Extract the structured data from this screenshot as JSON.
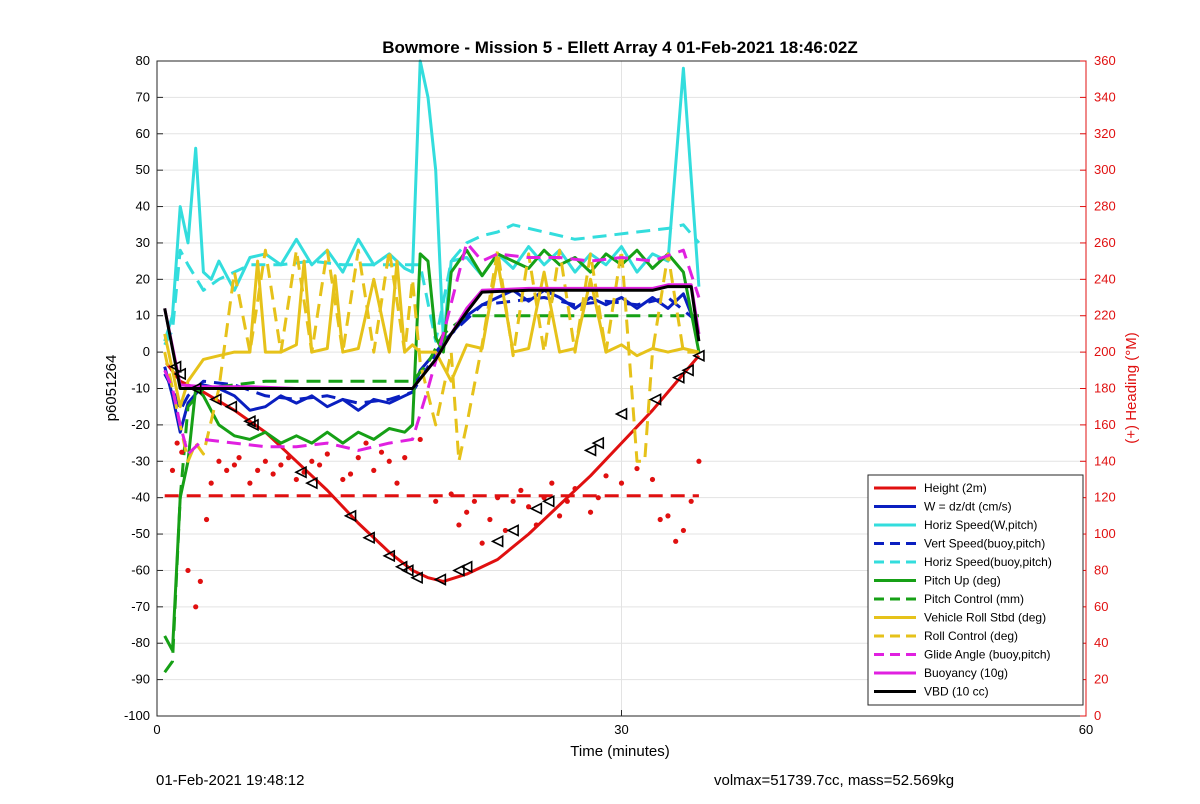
{
  "chart_data": {
    "type": "line",
    "title": "Bowmore - Mission 5 - Ellett Array 4 01-Feb-2021 18:46:02Z",
    "xlabel": "Time (minutes)",
    "ylabel": "p6051264",
    "y2label": "(+) Heading (°M)",
    "xlim": [
      0,
      60
    ],
    "ylim": [
      -100,
      80
    ],
    "y2lim": [
      0,
      360
    ],
    "xticks": [
      0,
      30,
      60
    ],
    "yticks": [
      -100,
      -90,
      -80,
      -70,
      -60,
      -50,
      -40,
      -30,
      -20,
      -10,
      0,
      10,
      20,
      30,
      40,
      50,
      60,
      70,
      80
    ],
    "y2ticks": [
      0,
      20,
      40,
      60,
      80,
      100,
      120,
      140,
      160,
      180,
      200,
      220,
      240,
      260,
      280,
      300,
      320,
      340,
      360
    ],
    "grid": true,
    "legend_position": "bottom-right",
    "colors": {
      "height": "#e01010",
      "w": "#0a1fc0",
      "horiz_speed": "#33dddd",
      "pitch": "#16a016",
      "roll": "#e6c21a",
      "glide": "#e020e0",
      "vbd": "#000000",
      "right_axis": "#e01010"
    },
    "series": [
      {
        "name": "Height (2m)",
        "style": "solid",
        "color": "#e01010",
        "axis": "left",
        "x": [
          0.6,
          1.5,
          3,
          5,
          7,
          9,
          11,
          13,
          15,
          16.5,
          17.5,
          18.5,
          20,
          22,
          24,
          26,
          28,
          30,
          32,
          34,
          35
        ],
        "y": [
          -3,
          -8,
          -11,
          -16,
          -22,
          -30,
          -38,
          -47,
          -55,
          -60,
          -62,
          -63,
          -61,
          -57,
          -50,
          -42,
          -34,
          -25,
          -16,
          -6,
          -1
        ]
      },
      {
        "name": "W = dz/dt (cm/s)",
        "style": "solid",
        "color": "#0a1fc0",
        "axis": "left",
        "x": [
          0.5,
          1,
          1.5,
          2,
          3,
          4,
          5,
          6,
          7,
          8,
          9,
          10,
          11,
          12,
          13,
          14,
          15,
          16,
          16.5,
          17,
          18,
          19,
          20,
          21,
          22,
          23,
          24,
          25,
          26,
          27,
          28,
          29,
          30,
          31,
          32,
          33,
          34,
          35
        ],
        "y": [
          -4,
          -12,
          -22,
          -14,
          -9,
          -10,
          -12,
          -16,
          -15,
          -12,
          -14,
          -12,
          -15,
          -13,
          -16,
          -13,
          -14,
          -12,
          -11,
          -5,
          0,
          5,
          10,
          13,
          15,
          17,
          14,
          17,
          15,
          12,
          15,
          13,
          15,
          12,
          15,
          12,
          16,
          5
        ]
      },
      {
        "name": "Horiz Speed(W,pitch)",
        "style": "solid",
        "color": "#33dddd",
        "axis": "left",
        "x": [
          0.5,
          1,
          1.5,
          2,
          2.5,
          3,
          3.5,
          4,
          5,
          6,
          7,
          8,
          9,
          10,
          11,
          12,
          13,
          14,
          15,
          16,
          16.5,
          17,
          17.5,
          18,
          18.5,
          19,
          20,
          21,
          22,
          23,
          24,
          25,
          26,
          27,
          28,
          29,
          30,
          31,
          32,
          33,
          34,
          35
        ],
        "y": [
          3,
          10,
          40,
          30,
          56,
          22,
          20,
          25,
          17,
          26,
          27,
          24,
          31,
          24,
          28,
          22,
          31,
          24,
          27,
          23,
          22,
          80,
          70,
          50,
          3,
          25,
          26,
          21,
          27,
          23,
          29,
          24,
          28,
          22,
          27,
          24,
          29,
          22,
          27,
          25,
          78,
          18
        ]
      },
      {
        "name": "Vert Speed(buoy,pitch)",
        "style": "dashed",
        "color": "#0a1fc0",
        "axis": "left",
        "x": [
          0.5,
          1,
          1.5,
          2,
          3,
          5,
          7,
          9,
          11,
          13,
          15,
          16.5,
          17.5,
          18.5,
          20,
          21,
          23,
          25,
          27,
          29,
          31,
          33,
          35
        ],
        "y": [
          -6,
          -10,
          -16,
          -12,
          -8,
          -9,
          -12,
          -13,
          -12,
          -14,
          -13,
          -11,
          -4,
          3,
          9,
          13,
          14,
          15,
          13,
          14,
          13,
          15,
          8
        ]
      },
      {
        "name": "Horiz Speed(buoy,pitch)",
        "style": "dashed",
        "color": "#33dddd",
        "axis": "left",
        "x": [
          0.5,
          1,
          1.5,
          2,
          3,
          4,
          6,
          8,
          10,
          12,
          14,
          16,
          17,
          18,
          19,
          20,
          21,
          22,
          23,
          25,
          27,
          29,
          31,
          33,
          34,
          35
        ],
        "y": [
          2,
          6,
          28,
          24,
          17,
          20,
          24,
          24,
          25,
          24,
          24,
          24,
          24,
          3,
          25,
          30,
          32,
          33,
          35,
          33,
          31,
          32,
          33,
          34,
          35,
          30
        ]
      },
      {
        "name": "Pitch Up (deg)",
        "style": "solid",
        "color": "#16a016",
        "axis": "left",
        "x": [
          0.5,
          1,
          1.5,
          2,
          2.5,
          3,
          4,
          5,
          6,
          7,
          8,
          9,
          10,
          11,
          12,
          13,
          14,
          15,
          16,
          16.5,
          17,
          17.5,
          18,
          18.5,
          19,
          20,
          21,
          22,
          23,
          24,
          25,
          26,
          27,
          28,
          29,
          30,
          31,
          32,
          33,
          34,
          35
        ],
        "y": [
          -78,
          -82,
          -40,
          -30,
          -10,
          -12,
          -20,
          -23,
          -24,
          -22,
          -25,
          -23,
          -25,
          -22,
          -25,
          -22,
          -24,
          -21,
          -22,
          -20,
          27,
          25,
          4,
          0,
          22,
          28,
          21,
          27,
          25,
          23,
          28,
          24,
          26,
          22,
          27,
          24,
          28,
          23,
          27,
          22,
          0
        ]
      },
      {
        "name": "Pitch Control (mm)",
        "style": "dashed",
        "color": "#16a016",
        "axis": "left",
        "x": [
          0.5,
          1,
          1.5,
          2,
          3,
          5,
          7,
          9,
          11,
          13,
          15,
          16.5,
          17.5,
          18.5,
          20,
          22,
          24,
          26,
          28,
          30,
          32,
          34,
          35
        ],
        "y": [
          -88,
          -85,
          -40,
          -15,
          -10,
          -9,
          -8,
          -8,
          -8,
          -8,
          -8,
          -8,
          -3,
          5,
          10,
          10,
          10,
          10,
          10,
          10,
          10,
          10,
          10
        ]
      },
      {
        "name": "Vehicle Roll Stbd (deg)",
        "style": "solid",
        "color": "#e6c21a",
        "axis": "left",
        "x": [
          0.5,
          1,
          1.5,
          2,
          3,
          4,
          5,
          6,
          6.5,
          7,
          8,
          9,
          9.5,
          10,
          11,
          11.5,
          12,
          13,
          14,
          15,
          15.5,
          16,
          16.5,
          17,
          18,
          19,
          20,
          21,
          22,
          23,
          24,
          25,
          26,
          27,
          28,
          29,
          30,
          31,
          32,
          33,
          34,
          35
        ],
        "y": [
          5,
          -5,
          -15,
          -8,
          -2,
          -1,
          0,
          0,
          25,
          0,
          0,
          2,
          25,
          0,
          1,
          21,
          0,
          1,
          20,
          0,
          25,
          0,
          2,
          0,
          0,
          -8,
          2,
          1,
          25,
          0,
          1,
          22,
          0,
          1,
          20,
          0,
          2,
          -1,
          1,
          0,
          1,
          0
        ]
      },
      {
        "name": "Roll Control (deg)",
        "style": "dashed",
        "color": "#e6c21a",
        "axis": "left",
        "x": [
          0.5,
          1,
          1.5,
          2,
          2.5,
          3,
          4,
          5,
          6,
          7,
          8,
          9,
          10,
          11,
          12,
          13,
          14,
          15,
          16,
          16.5,
          17,
          18,
          19,
          19.5,
          20,
          21,
          22,
          23,
          24,
          25,
          26,
          27,
          28,
          29,
          30,
          31,
          31.5,
          32,
          33,
          34,
          35
        ],
        "y": [
          0,
          -10,
          -20,
          -30,
          -25,
          -28,
          -10,
          22,
          0,
          28,
          0,
          28,
          0,
          28,
          0,
          28,
          0,
          28,
          0,
          20,
          -3,
          -20,
          0,
          -30,
          -20,
          2,
          28,
          -1,
          27,
          0,
          28,
          0,
          27,
          0,
          28,
          -30,
          -30,
          0,
          27,
          0,
          0
        ]
      },
      {
        "name": "Glide Angle (buoy,pitch)",
        "style": "dashed",
        "color": "#e020e0",
        "axis": "left",
        "x": [
          0.5,
          1,
          1.5,
          2,
          3,
          5,
          7,
          9,
          11,
          13,
          15,
          16.5,
          17.5,
          18.5,
          20,
          21,
          22,
          24,
          26,
          28,
          30,
          32,
          34,
          35
        ],
        "y": [
          -5,
          -10,
          -20,
          -28,
          -24,
          -25,
          -26,
          -26,
          -25,
          -27,
          -25,
          -24,
          -10,
          5,
          30,
          25,
          27,
          26,
          26,
          25,
          26,
          25,
          28,
          15
        ]
      },
      {
        "name": "Buoyancy (10g)",
        "style": "solid",
        "color": "#e020e0",
        "axis": "left",
        "x": [
          0.5,
          1.5,
          3,
          6,
          9,
          12,
          15,
          16.5,
          18,
          19,
          20,
          21,
          24,
          27,
          30,
          32,
          33,
          34.5,
          35
        ],
        "y": [
          12,
          -9,
          -9.5,
          -9.5,
          -10,
          -10,
          -10,
          -10,
          -2,
          5,
          12,
          17,
          17.5,
          17.5,
          17.5,
          17.5,
          18.5,
          18.5,
          5
        ]
      },
      {
        "name": "VBD (10 cc)",
        "style": "solid",
        "color": "#000000",
        "axis": "left",
        "x": [
          0.5,
          1.5,
          3,
          6,
          9,
          12,
          15,
          16.5,
          18,
          19,
          20,
          21,
          24,
          27,
          30,
          32,
          33,
          34.5,
          35
        ],
        "y": [
          12,
          -10,
          -10,
          -10,
          -10,
          -10,
          -10,
          -10,
          -2,
          5,
          11,
          16.5,
          17,
          17,
          17,
          17,
          18,
          18,
          3
        ]
      },
      {
        "name": "Reference",
        "style": "dashed",
        "color": "#e01010",
        "axis": "left",
        "show_in_legend": false,
        "x": [
          0.5,
          35
        ],
        "y": [
          -39.5,
          -39.5
        ]
      }
    ],
    "heading_points": [
      [
        1,
        135
      ],
      [
        1.3,
        150
      ],
      [
        1.6,
        145
      ],
      [
        2,
        80
      ],
      [
        2.5,
        60
      ],
      [
        2.8,
        74
      ],
      [
        3.2,
        108
      ],
      [
        3.5,
        128
      ],
      [
        4,
        140
      ],
      [
        4.5,
        135
      ],
      [
        5,
        138
      ],
      [
        5.3,
        142
      ],
      [
        6,
        128
      ],
      [
        6.5,
        135
      ],
      [
        7,
        140
      ],
      [
        7.5,
        133
      ],
      [
        8,
        138
      ],
      [
        8.5,
        142
      ],
      [
        9,
        130
      ],
      [
        9.5,
        134
      ],
      [
        10,
        140
      ],
      [
        10.5,
        138
      ],
      [
        11,
        144
      ],
      [
        12,
        130
      ],
      [
        12.5,
        133
      ],
      [
        13,
        142
      ],
      [
        13.5,
        150
      ],
      [
        14,
        135
      ],
      [
        14.5,
        145
      ],
      [
        15,
        140
      ],
      [
        15.5,
        128
      ],
      [
        16,
        142
      ],
      [
        17,
        152
      ],
      [
        18,
        118
      ],
      [
        19,
        122
      ],
      [
        19.5,
        105
      ],
      [
        20,
        112
      ],
      [
        20.5,
        118
      ],
      [
        21,
        95
      ],
      [
        21.5,
        108
      ],
      [
        22,
        120
      ],
      [
        22.5,
        102
      ],
      [
        23,
        118
      ],
      [
        23.5,
        124
      ],
      [
        24,
        115
      ],
      [
        24.5,
        105
      ],
      [
        25,
        120
      ],
      [
        25.5,
        128
      ],
      [
        26,
        110
      ],
      [
        26.5,
        118
      ],
      [
        27,
        125
      ],
      [
        28,
        112
      ],
      [
        28.5,
        120
      ],
      [
        29,
        132
      ],
      [
        30,
        128
      ],
      [
        31,
        136
      ],
      [
        32,
        130
      ],
      [
        32.5,
        108
      ],
      [
        33,
        110
      ],
      [
        33.5,
        96
      ],
      [
        34,
        102
      ],
      [
        34.5,
        118
      ],
      [
        35,
        140
      ]
    ],
    "triangle_markers": [
      [
        1.2,
        -4
      ],
      [
        1.5,
        -6
      ],
      [
        2.5,
        -10
      ],
      [
        3.8,
        -13
      ],
      [
        4.8,
        -15
      ],
      [
        6,
        -19
      ],
      [
        6.2,
        -20
      ],
      [
        9.3,
        -33
      ],
      [
        10,
        -36
      ],
      [
        12.5,
        -45
      ],
      [
        13.7,
        -51
      ],
      [
        15,
        -56
      ],
      [
        15.8,
        -59
      ],
      [
        16.2,
        -60
      ],
      [
        16.8,
        -62
      ],
      [
        18.3,
        -62.5
      ],
      [
        19.5,
        -60
      ],
      [
        20,
        -59
      ],
      [
        22,
        -52
      ],
      [
        23,
        -49
      ],
      [
        24.5,
        -43
      ],
      [
        25.3,
        -41
      ],
      [
        28,
        -27
      ],
      [
        28.5,
        -25
      ],
      [
        30,
        -17
      ],
      [
        32.2,
        -13
      ],
      [
        33.7,
        -7
      ],
      [
        34.3,
        -5
      ],
      [
        35,
        -1
      ]
    ]
  },
  "footer": {
    "left": "01-Feb-2021 19:48:12",
    "right": "volmax=51739.7cc, mass=52.569kg"
  }
}
